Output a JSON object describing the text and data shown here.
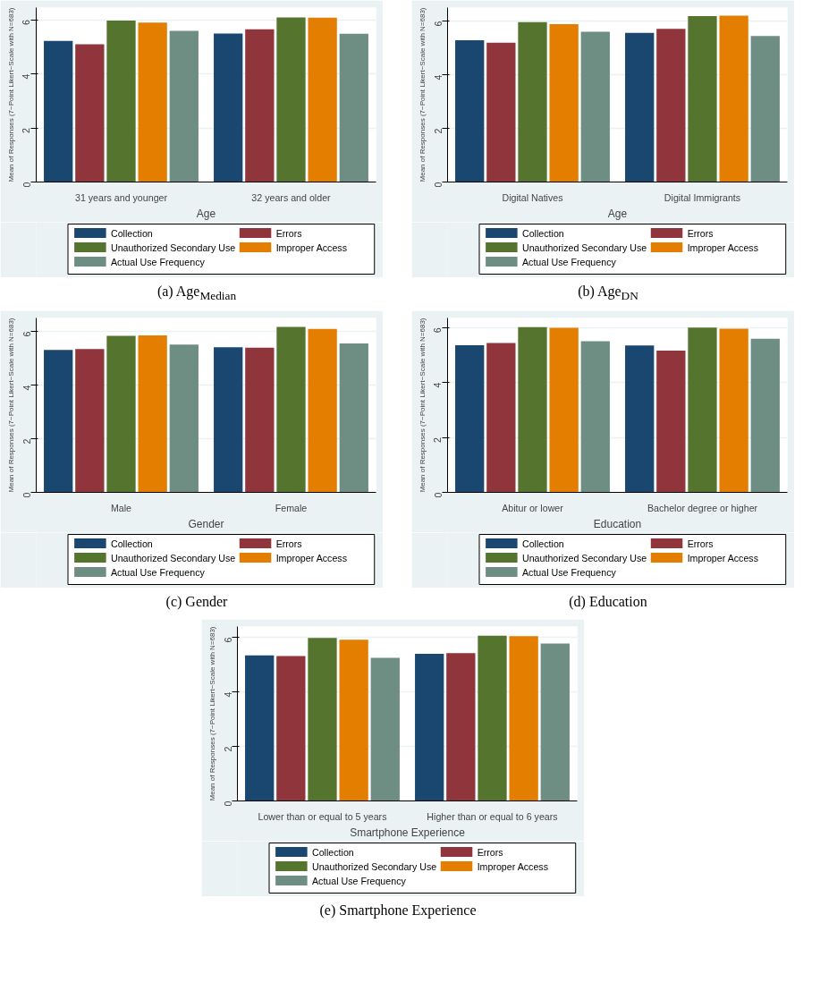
{
  "chart_data": [
    {
      "type": "bar",
      "categories": [
        "31 years and younger",
        "32 years and older"
      ],
      "xlabel": "Age",
      "ylabel": "Mean of Responses (7−Point Likert−Scale with N=683)",
      "ylim": [
        0,
        6.45
      ],
      "yticks": [
        0,
        2,
        4,
        6
      ],
      "grid": "y",
      "legend": "bottom",
      "annotations": [
        "(a) Age$_{Median}$"
      ],
      "series": [
        {
          "name": "Collection",
          "color": "#1a476f",
          "values": [
            5.22,
            5.49
          ]
        },
        {
          "name": "Errors",
          "color": "#90353b",
          "values": [
            5.09,
            5.65
          ]
        },
        {
          "name": "Unauthorized Secondary Use",
          "color": "#55752f",
          "values": [
            5.97,
            6.09
          ]
        },
        {
          "name": "Improper Access",
          "color": "#e37e00",
          "values": [
            5.9,
            6.08
          ]
        },
        {
          "name": "Actual Use Frequency",
          "color": "#6e8e84",
          "values": [
            5.59,
            5.48
          ]
        }
      ]
    },
    {
      "type": "bar",
      "categories": [
        "Digital Natives",
        "Digital Immigrants"
      ],
      "xlabel": "Age",
      "ylabel": "Mean of Responses (7−Point Likert−Scale with N=683)",
      "ylim": [
        0,
        6.5
      ],
      "yticks": [
        0,
        2,
        4,
        6
      ],
      "grid": "y",
      "legend": "bottom",
      "annotations": [
        "(b) Age$_{DN}$"
      ],
      "series": [
        {
          "name": "Collection",
          "color": "#1a476f",
          "values": [
            5.28,
            5.56
          ]
        },
        {
          "name": "Errors",
          "color": "#90353b",
          "values": [
            5.19,
            5.71
          ]
        },
        {
          "name": "Unauthorized Secondary Use",
          "color": "#55752f",
          "values": [
            5.96,
            6.18
          ]
        },
        {
          "name": "Improper Access",
          "color": "#e37e00",
          "values": [
            5.88,
            6.2
          ]
        },
        {
          "name": "Actual Use Frequency",
          "color": "#6e8e84",
          "values": [
            5.6,
            5.44
          ]
        }
      ]
    },
    {
      "type": "bar",
      "categories": [
        "Male",
        "Female"
      ],
      "xlabel": "Gender",
      "ylabel": "Mean of Responses (7−Point Likert−Scale with N=683)",
      "ylim": [
        0,
        6.5
      ],
      "yticks": [
        0,
        2,
        4,
        6
      ],
      "grid": "y",
      "legend": "bottom",
      "annotations": [
        "(c) Gender"
      ],
      "series": [
        {
          "name": "Collection",
          "color": "#1a476f",
          "values": [
            5.31,
            5.41
          ]
        },
        {
          "name": "Errors",
          "color": "#90353b",
          "values": [
            5.34,
            5.39
          ]
        },
        {
          "name": "Unauthorized Secondary Use",
          "color": "#55752f",
          "values": [
            5.83,
            6.17
          ]
        },
        {
          "name": "Improper Access",
          "color": "#e37e00",
          "values": [
            5.85,
            6.09
          ]
        },
        {
          "name": "Actual Use Frequency",
          "color": "#6e8e84",
          "values": [
            5.51,
            5.55
          ]
        }
      ]
    },
    {
      "type": "bar",
      "categories": [
        "Abitur or lower",
        "Bachelor degree or higher"
      ],
      "xlabel": "Education",
      "ylabel": "Mean of Responses (7−Point Likert−Scale with N=683)",
      "ylim": [
        0,
        6.35
      ],
      "yticks": [
        0,
        2,
        4,
        6
      ],
      "grid": "y",
      "legend": "bottom",
      "annotations": [
        "(d) Education"
      ],
      "series": [
        {
          "name": "Collection",
          "color": "#1a476f",
          "values": [
            5.36,
            5.35
          ]
        },
        {
          "name": "Errors",
          "color": "#90353b",
          "values": [
            5.44,
            5.16
          ]
        },
        {
          "name": "Unauthorized Secondary Use",
          "color": "#55752f",
          "values": [
            6.02,
            6.0
          ]
        },
        {
          "name": "Improper Access",
          "color": "#e37e00",
          "values": [
            5.99,
            5.96
          ]
        },
        {
          "name": "Actual Use Frequency",
          "color": "#6e8e84",
          "values": [
            5.5,
            5.59
          ]
        }
      ]
    },
    {
      "type": "bar",
      "categories": [
        "Lower than or equal to 5 years",
        "Higher than or equal to 6 years"
      ],
      "xlabel": "Smartphone Experience",
      "ylabel": "Mean of Responses (7−Point Likert−Scale with N=683)",
      "ylim": [
        0,
        6.4
      ],
      "yticks": [
        0,
        2,
        4,
        6
      ],
      "grid": "y",
      "legend": "bottom",
      "annotations": [
        "(e) Smartphone Experience"
      ],
      "series": [
        {
          "name": "Collection",
          "color": "#1a476f",
          "values": [
            5.34,
            5.4
          ]
        },
        {
          "name": "Errors",
          "color": "#90353b",
          "values": [
            5.32,
            5.42
          ]
        },
        {
          "name": "Unauthorized Secondary Use",
          "color": "#55752f",
          "values": [
            5.98,
            6.06
          ]
        },
        {
          "name": "Improper Access",
          "color": "#e37e00",
          "values": [
            5.92,
            6.05
          ]
        },
        {
          "name": "Actual Use Frequency",
          "color": "#6e8e84",
          "values": [
            5.25,
            5.78
          ]
        }
      ]
    }
  ]
}
